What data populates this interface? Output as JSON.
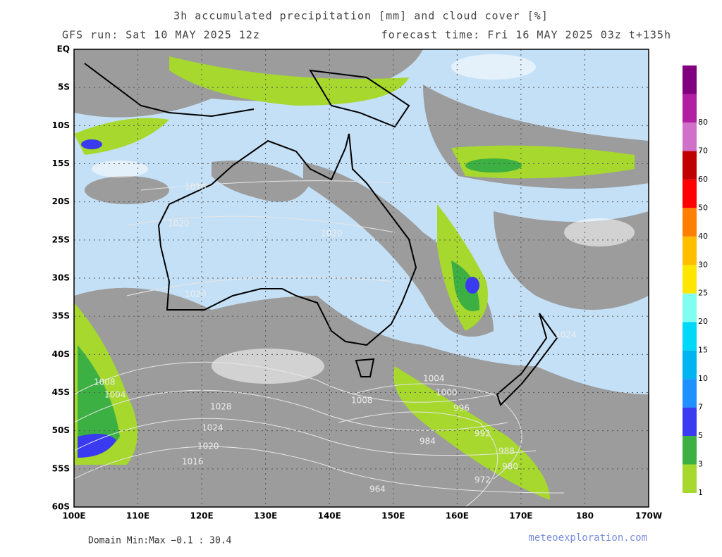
{
  "header": {
    "title": "3h accumulated precipitation [mm] and cloud cover [%]",
    "run": "GFS run: Sat 10 MAY 2025 12z",
    "forecast": "forecast time: Fri 16 MAY 2025 03z  t+135h"
  },
  "map": {
    "lat_labels": [
      "EQ",
      "5S",
      "10S",
      "15S",
      "20S",
      "25S",
      "30S",
      "35S",
      "40S",
      "45S",
      "50S",
      "55S",
      "60S"
    ],
    "lon_labels": [
      "100E",
      "110E",
      "120E",
      "130E",
      "140E",
      "150E",
      "160E",
      "170E",
      "180",
      "170W"
    ],
    "isobars": [
      "1016",
      "1020",
      "1020",
      "1020",
      "1008",
      "1004",
      "1028",
      "1024",
      "1020",
      "1016",
      "1008",
      "1004",
      "1000",
      "996",
      "992",
      "988",
      "984",
      "980",
      "972",
      "964",
      "1024"
    ]
  },
  "colorbar": {
    "levels": [
      1,
      3,
      5,
      7,
      10,
      15,
      20,
      25,
      30,
      40,
      50,
      60,
      70,
      80
    ],
    "colors": [
      "#a6d82e",
      "#3cb043",
      "#3a3af0",
      "#1e90ff",
      "#00b4f0",
      "#00d8f8",
      "#80fff0",
      "#ffe600",
      "#ffbf00",
      "#ff8000",
      "#ff0000",
      "#c00000",
      "#d070c8",
      "#b020a0",
      "#800080"
    ]
  },
  "footer": {
    "domain": "Domain Min:Max −0.1 : 30.4",
    "site": "meteoexploration.com"
  }
}
